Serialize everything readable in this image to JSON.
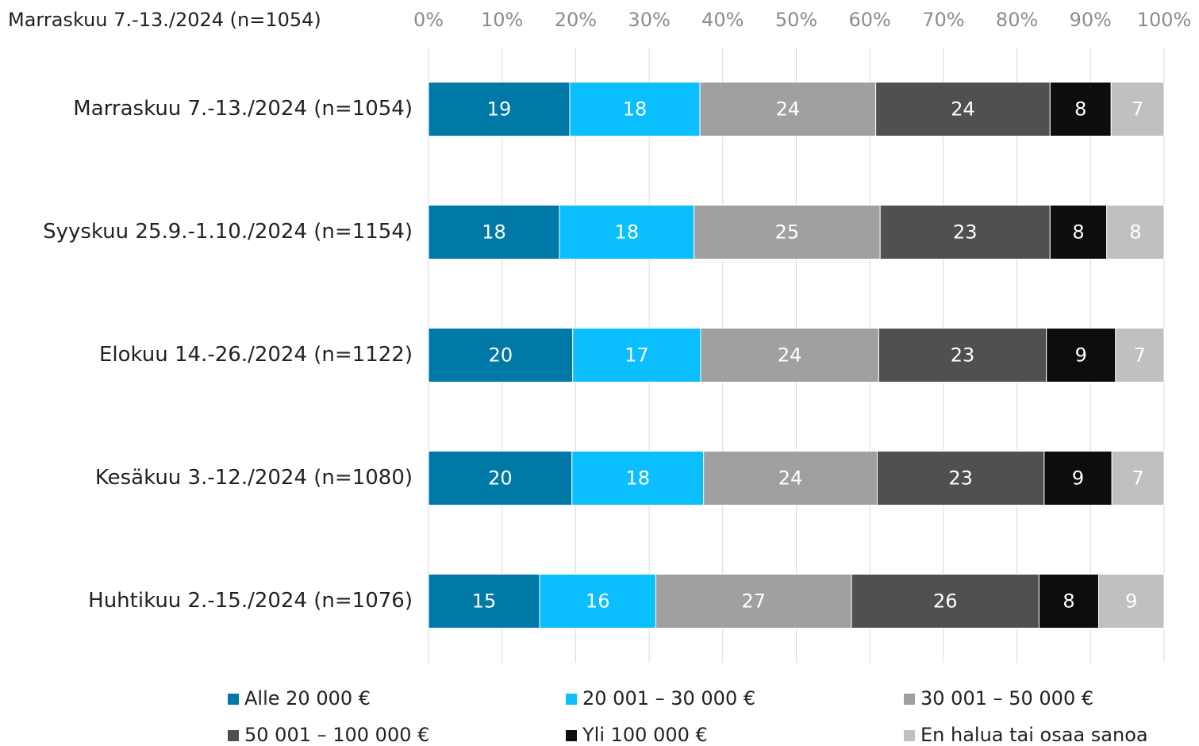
{
  "chart_data": {
    "type": "stacked_bar_horizontal",
    "title": "Marraskuu 7.-13./2024 (n=1054)",
    "categories": [
      "Marraskuu 7.-13./2024 (n=1054)",
      "Syyskuu 25.9.-1.10./2024 (n=1154)",
      "Elokuu 14.-26./2024 (n=1122)",
      "Kesäkuu 3.-12./2024 (n=1080)",
      "Huhtikuu 2.-15./2024 (n=1076)"
    ],
    "series": [
      {
        "name": "Alle 20 000 €",
        "color": "#0079a6",
        "values": [
          19.2,
          17.8,
          19.6,
          19.5,
          15.1
        ],
        "value_labels": [
          "19",
          "18",
          "20",
          "20",
          "15"
        ]
      },
      {
        "name": "20 001 – 30 000 €",
        "color": "#0bbfff",
        "values": [
          17.7,
          18.3,
          17.4,
          17.9,
          15.8
        ],
        "value_labels": [
          "18",
          "18",
          "17",
          "18",
          "16"
        ]
      },
      {
        "name": "30 001 – 50 000 €",
        "color": "#a0a0a0",
        "values": [
          23.9,
          25.3,
          24.2,
          23.6,
          26.6
        ],
        "value_labels": [
          "24",
          "25",
          "24",
          "24",
          "27"
        ]
      },
      {
        "name": "50 001 – 100 000 €",
        "color": "#505050",
        "values": [
          23.7,
          23.1,
          22.8,
          22.7,
          25.5
        ],
        "value_labels": [
          "24",
          "23",
          "23",
          "23",
          "26"
        ]
      },
      {
        "name": "Yli 100 000 €",
        "color": "#0d0d0d",
        "values": [
          8.3,
          7.7,
          9.4,
          9.2,
          8.1
        ],
        "value_labels": [
          "8",
          "8",
          "9",
          "9",
          "8"
        ]
      },
      {
        "name": "En halua tai osaa sanoa",
        "color": "#c0c0c0",
        "values": [
          7.2,
          7.8,
          6.6,
          7.1,
          8.9
        ],
        "value_labels": [
          "7",
          "8",
          "7",
          "7",
          "9"
        ]
      }
    ],
    "xlim": [
      0,
      100
    ],
    "xticks": [
      {
        "value": 0,
        "label": "0%"
      },
      {
        "value": 10,
        "label": "10%"
      },
      {
        "value": 20,
        "label": "20%"
      },
      {
        "value": 30,
        "label": "30%"
      },
      {
        "value": 40,
        "label": "40%"
      },
      {
        "value": 50,
        "label": "50%"
      },
      {
        "value": 60,
        "label": "60%"
      },
      {
        "value": 70,
        "label": "70%"
      },
      {
        "value": 80,
        "label": "80%"
      },
      {
        "value": 90,
        "label": "90%"
      },
      {
        "value": 100,
        "label": "100%"
      }
    ],
    "grid": true,
    "legend": "bottom"
  }
}
